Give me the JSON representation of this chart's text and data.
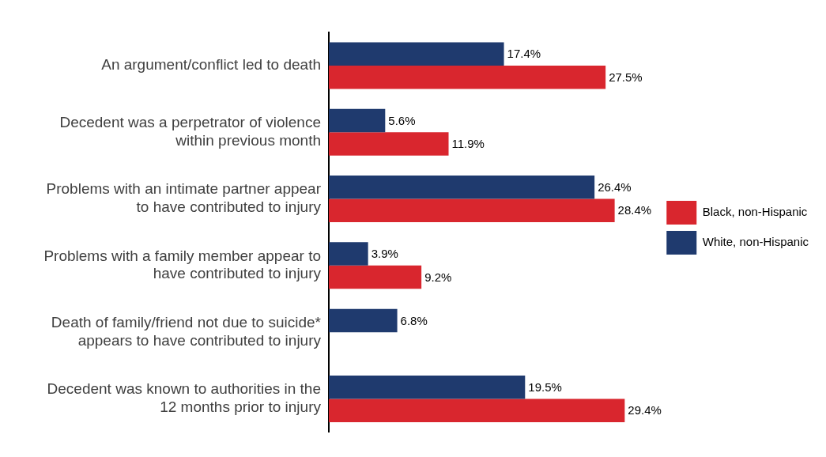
{
  "chart_data": {
    "type": "bar",
    "orientation": "horizontal",
    "categories": [
      "An argument/conflict led to death",
      "Decedent was a perpetrator of violence within previous month",
      "Problems with an intimate partner appear to have contributed to injury",
      "Problems with a family member appear to have contributed to injury",
      "Death of family/friend not due to suicide* appears to have contributed to injury",
      "Decedent was known to authorities in the 12 months prior to injury"
    ],
    "series": [
      {
        "name": "White, non-Hispanic",
        "color": "#1f3a6e",
        "values": [
          17.4,
          5.6,
          26.4,
          3.9,
          6.8,
          19.5
        ],
        "value_labels": [
          "17.4%",
          "5.6%",
          "26.4%",
          "3.9%",
          "6.8%",
          "19.5%"
        ]
      },
      {
        "name": "Black, non-Hispanic",
        "color": "#d9262e",
        "values": [
          27.5,
          11.9,
          28.4,
          9.2,
          null,
          29.4
        ],
        "value_labels": [
          "27.5%",
          "11.9%",
          "28.4%",
          "9.2%",
          null,
          "29.4%"
        ]
      }
    ],
    "legend": "right"
  }
}
